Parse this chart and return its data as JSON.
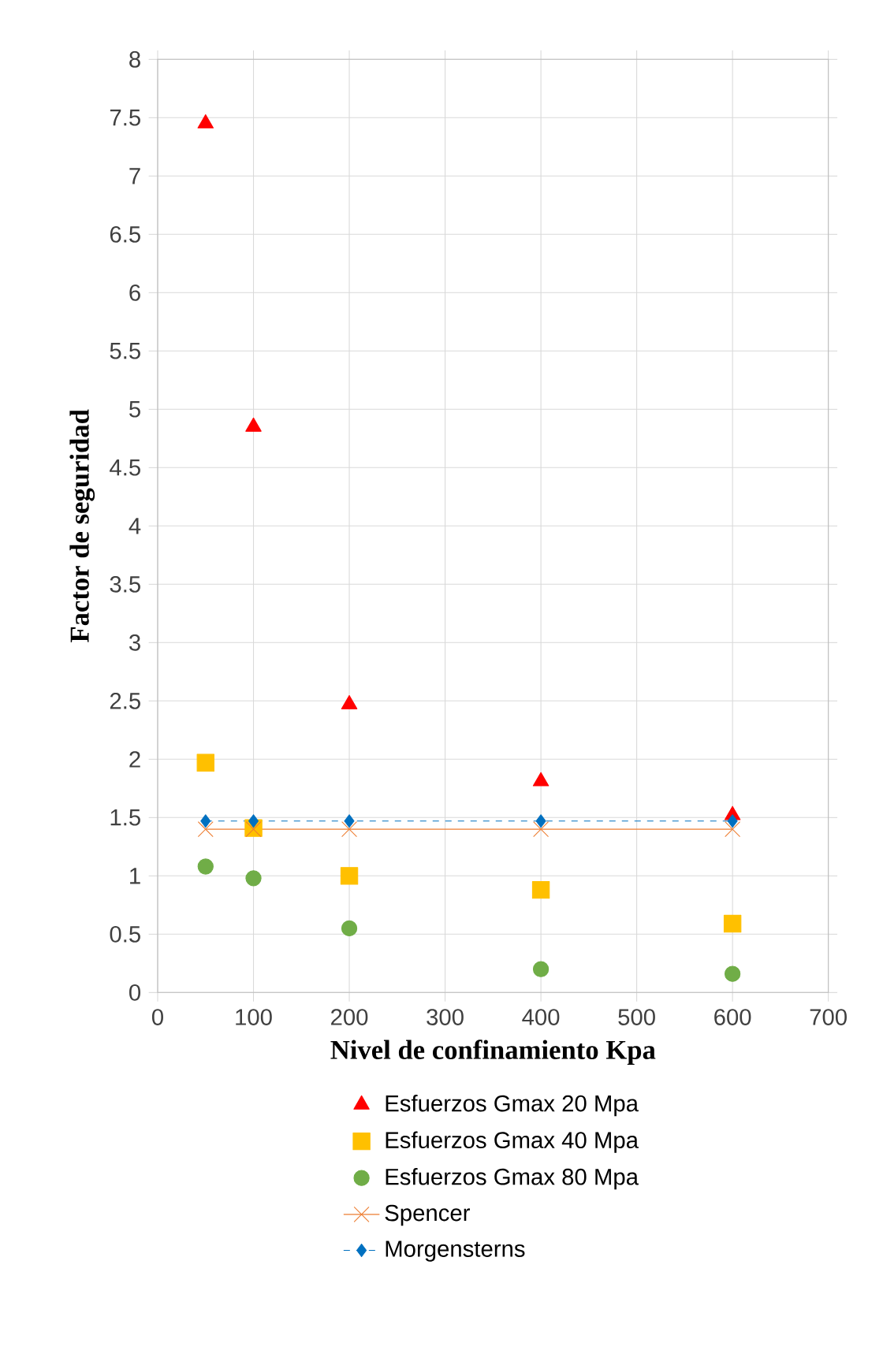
{
  "chart_data": {
    "type": "scatter",
    "xlabel": "Nivel de confinamiento Kpa",
    "ylabel": "Factor de seguridad",
    "x": [
      50,
      100,
      200,
      400,
      600
    ],
    "xlim": [
      0,
      700
    ],
    "xticks": [
      0,
      100,
      200,
      300,
      400,
      500,
      600,
      700
    ],
    "ylim": [
      0,
      8
    ],
    "yticks": [
      0,
      0.5,
      1,
      1.5,
      2,
      2.5,
      3,
      3.5,
      4,
      4.5,
      5,
      5.5,
      6,
      6.5,
      7,
      7.5,
      8
    ],
    "grid": true,
    "legend": "bottom",
    "series": [
      {
        "name": "Esfuerzos Gmax 20 Mpa",
        "color": "#ff0000",
        "marker": "triangle",
        "values": [
          7.45,
          4.85,
          2.47,
          1.81,
          1.52
        ]
      },
      {
        "name": "Esfuerzos Gmax 40 Mpa",
        "color": "#ffc000",
        "marker": "square",
        "values": [
          1.97,
          1.41,
          1.0,
          0.88,
          0.59
        ]
      },
      {
        "name": "Esfuerzos Gmax 80 Mpa",
        "color": "#70ad47",
        "marker": "circle",
        "values": [
          1.08,
          0.98,
          0.55,
          0.2,
          0.16
        ]
      },
      {
        "type": "line",
        "name": "Spencer",
        "color": "#ed7d31",
        "marker": "cross",
        "line_style": "solid",
        "values": [
          1.4,
          1.4,
          1.4,
          1.4,
          1.4
        ]
      },
      {
        "type": "line",
        "name": "Morgensterns",
        "color": "#0070c0",
        "marker": "diamond",
        "line_style": "dashed",
        "values": [
          1.47,
          1.47,
          1.47,
          1.47,
          1.47
        ]
      }
    ]
  }
}
